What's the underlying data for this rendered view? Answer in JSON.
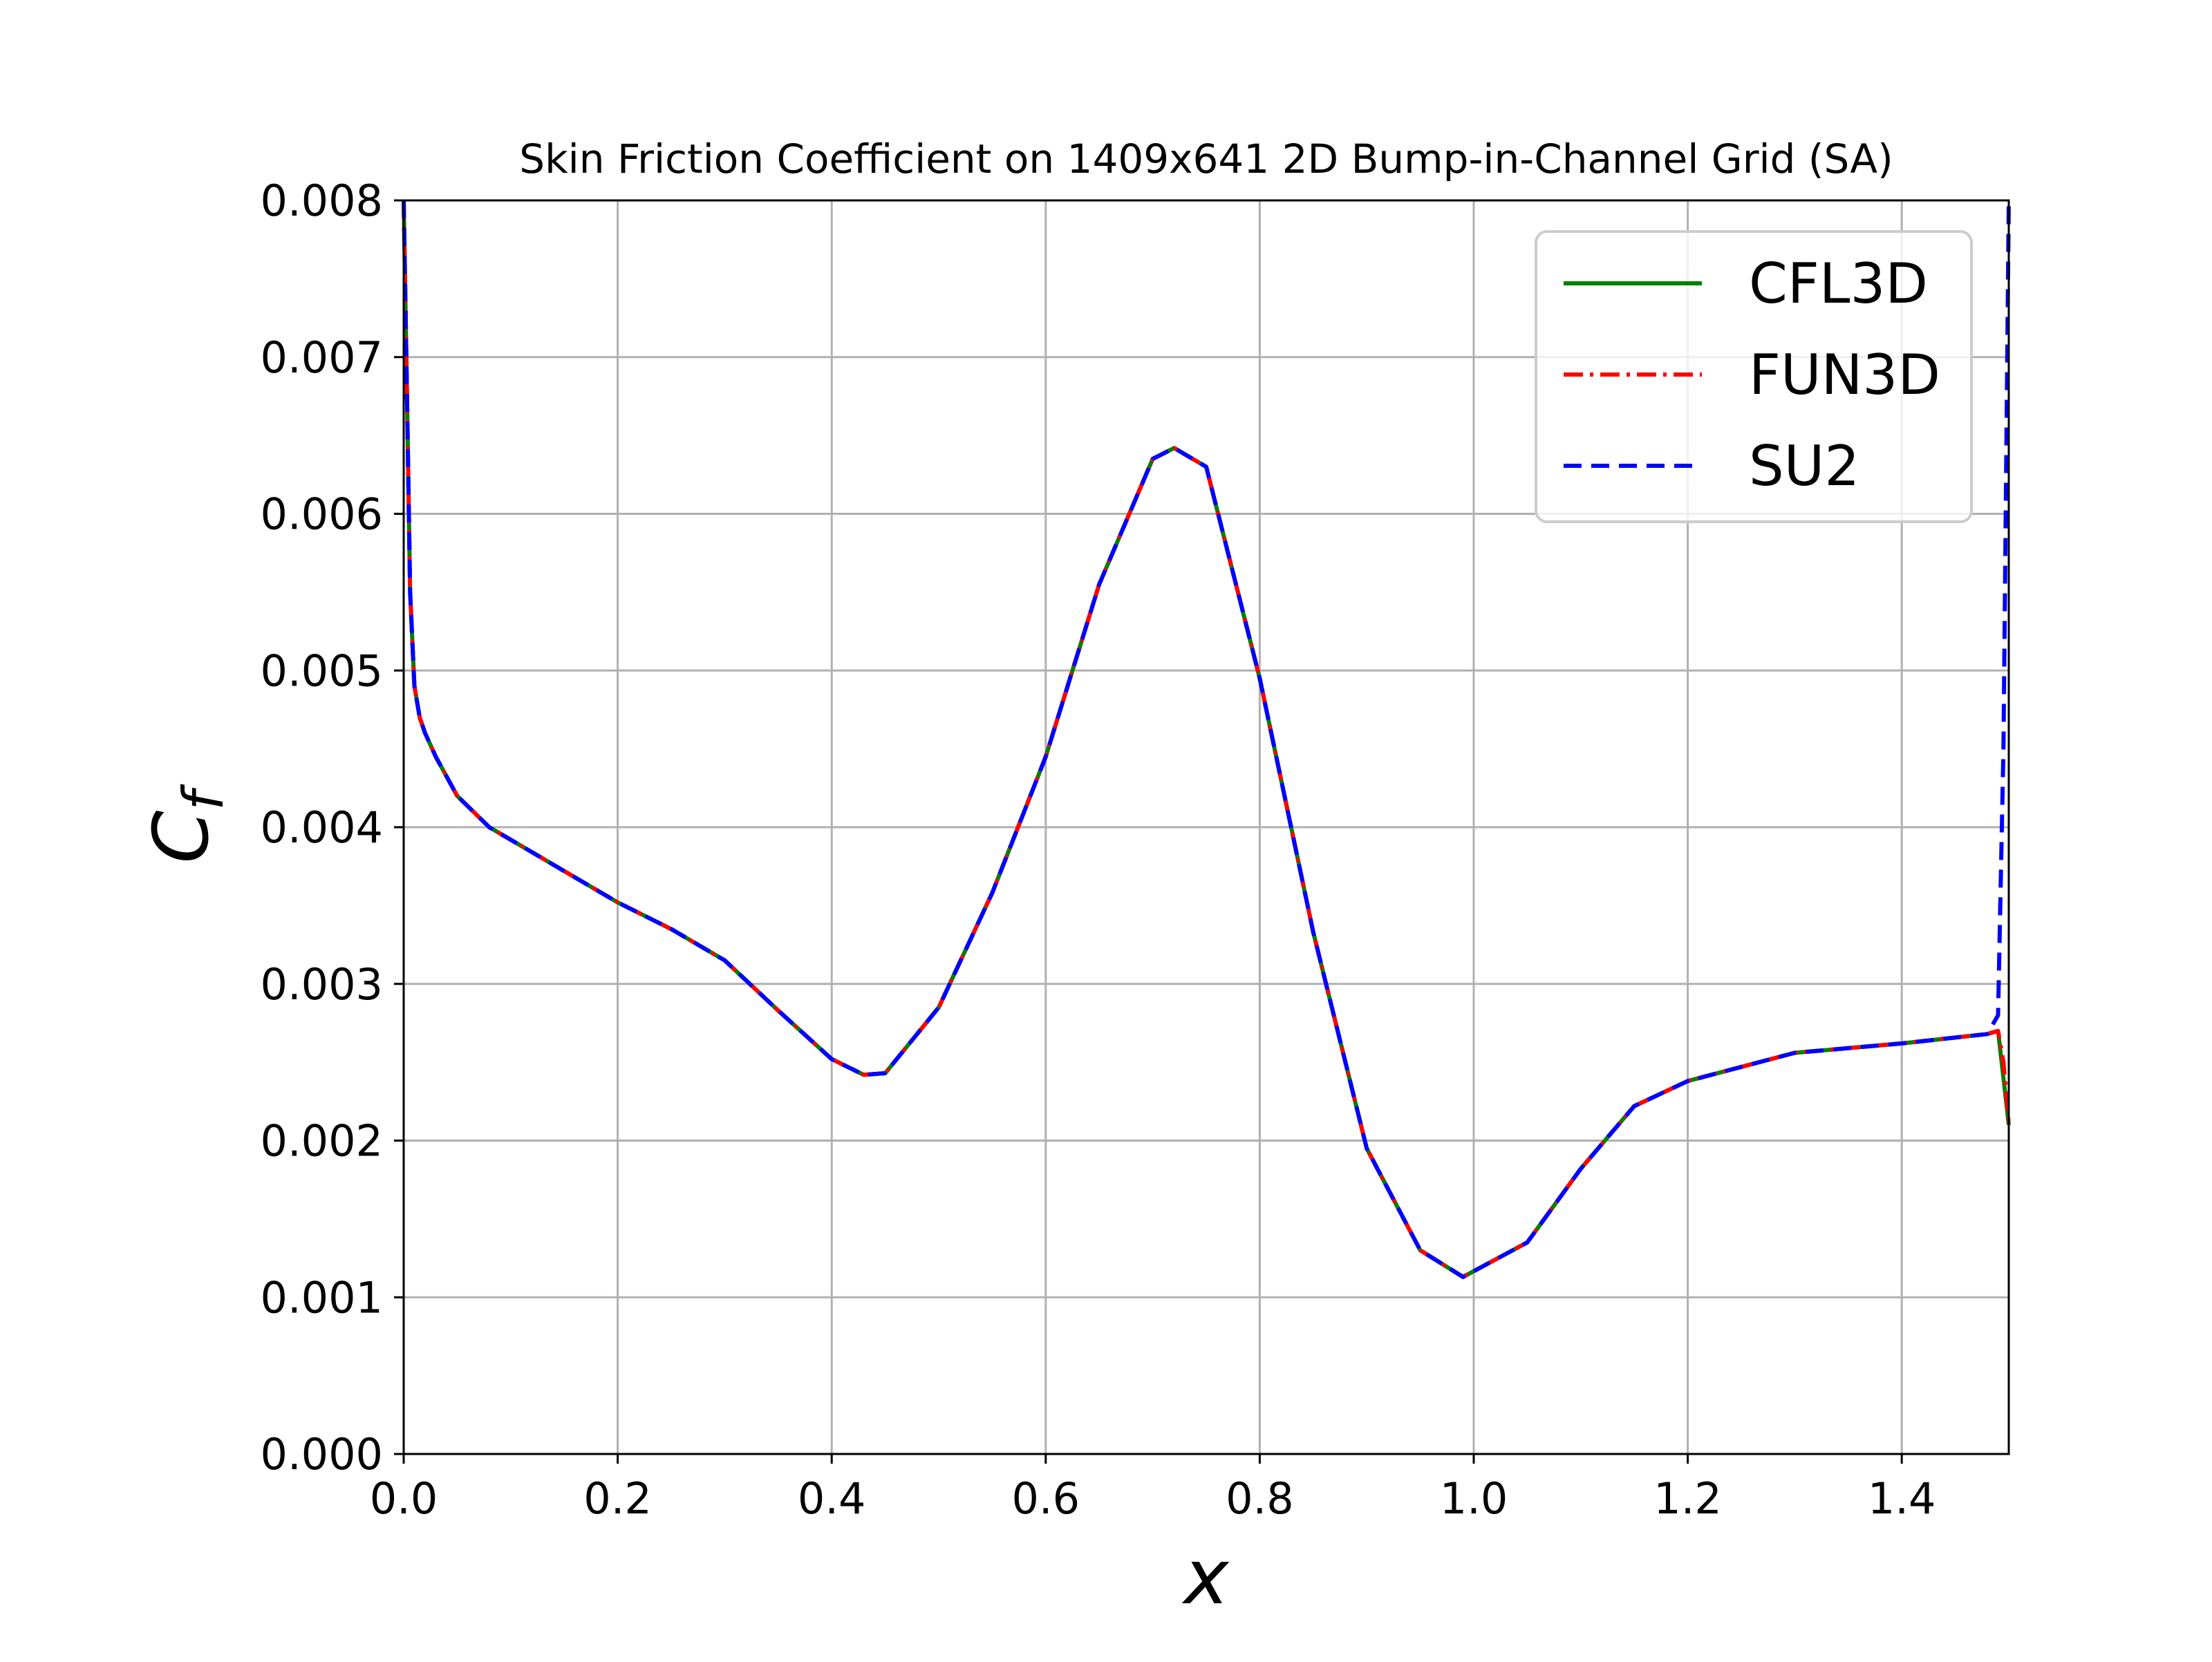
{
  "chart_data": {
    "type": "line",
    "title": "Skin Friction Coefficient on 1409x641 2D Bump-in-Channel Grid (SA)",
    "xlabel": "x",
    "ylabel": "C_f",
    "xlim": [
      0.0,
      1.5
    ],
    "ylim": [
      0.0,
      0.008
    ],
    "grid": true,
    "legend_position": "top-right",
    "x_ticks": [
      "0.0",
      "0.2",
      "0.4",
      "0.6",
      "0.8",
      "1.0",
      "1.2",
      "1.4"
    ],
    "y_ticks": [
      "0.000",
      "0.001",
      "0.002",
      "0.003",
      "0.004",
      "0.005",
      "0.006",
      "0.007",
      "0.008"
    ],
    "x_tick_values": [
      0.0,
      0.2,
      0.4,
      0.6,
      0.8,
      1.0,
      1.2,
      1.4
    ],
    "y_tick_values": [
      0.0,
      0.001,
      0.002,
      0.003,
      0.004,
      0.005,
      0.006,
      0.007,
      0.008
    ],
    "x": [
      0.0,
      0.003,
      0.006,
      0.01,
      0.015,
      0.02,
      0.03,
      0.05,
      0.08,
      0.1,
      0.15,
      0.2,
      0.25,
      0.3,
      0.35,
      0.4,
      0.43,
      0.45,
      0.5,
      0.55,
      0.6,
      0.65,
      0.7,
      0.72,
      0.75,
      0.8,
      0.85,
      0.9,
      0.95,
      0.99,
      1.05,
      1.1,
      1.15,
      1.2,
      1.3,
      1.4,
      1.48,
      1.49,
      1.495,
      1.5
    ],
    "series": [
      {
        "name": "CFL3D",
        "color": "#008000",
        "style": "solid",
        "values": [
          0.008,
          0.0068,
          0.0055,
          0.0049,
          0.0047,
          0.0046,
          0.00445,
          0.0042,
          0.004,
          0.00392,
          0.00372,
          0.00352,
          0.00335,
          0.00315,
          0.00283,
          0.00252,
          0.00242,
          0.00243,
          0.00285,
          0.00358,
          0.00445,
          0.00555,
          0.00635,
          0.00642,
          0.0063,
          0.00495,
          0.00333,
          0.00195,
          0.0013,
          0.00113,
          0.00135,
          0.00182,
          0.00222,
          0.00238,
          0.00256,
          0.00262,
          0.00268,
          0.0027,
          0.0024,
          0.0021
        ]
      },
      {
        "name": "FUN3D",
        "color": "#ff0000",
        "style": "dashdot",
        "values": [
          0.008,
          0.0068,
          0.0055,
          0.0049,
          0.0047,
          0.0046,
          0.00445,
          0.0042,
          0.004,
          0.00392,
          0.00372,
          0.00352,
          0.00335,
          0.00315,
          0.00283,
          0.00252,
          0.00242,
          0.00243,
          0.00285,
          0.00358,
          0.00445,
          0.00555,
          0.00635,
          0.00642,
          0.0063,
          0.00495,
          0.00333,
          0.00195,
          0.0013,
          0.00113,
          0.00135,
          0.00182,
          0.00222,
          0.00238,
          0.00256,
          0.00262,
          0.00268,
          0.0027,
          0.0025,
          0.0021
        ]
      },
      {
        "name": "SU2",
        "color": "#0000ff",
        "style": "dashed",
        "values": [
          0.008,
          0.0068,
          0.0055,
          0.0049,
          0.0047,
          0.0046,
          0.00445,
          0.0042,
          0.004,
          0.00392,
          0.00372,
          0.00352,
          0.00335,
          0.00315,
          0.00283,
          0.00252,
          0.00242,
          0.00243,
          0.00285,
          0.00358,
          0.00445,
          0.00555,
          0.00635,
          0.00642,
          0.0063,
          0.00495,
          0.00333,
          0.00195,
          0.0013,
          0.00113,
          0.00135,
          0.00182,
          0.00222,
          0.00238,
          0.00256,
          0.00262,
          0.00268,
          0.0028,
          0.0045,
          0.008
        ]
      }
    ]
  }
}
